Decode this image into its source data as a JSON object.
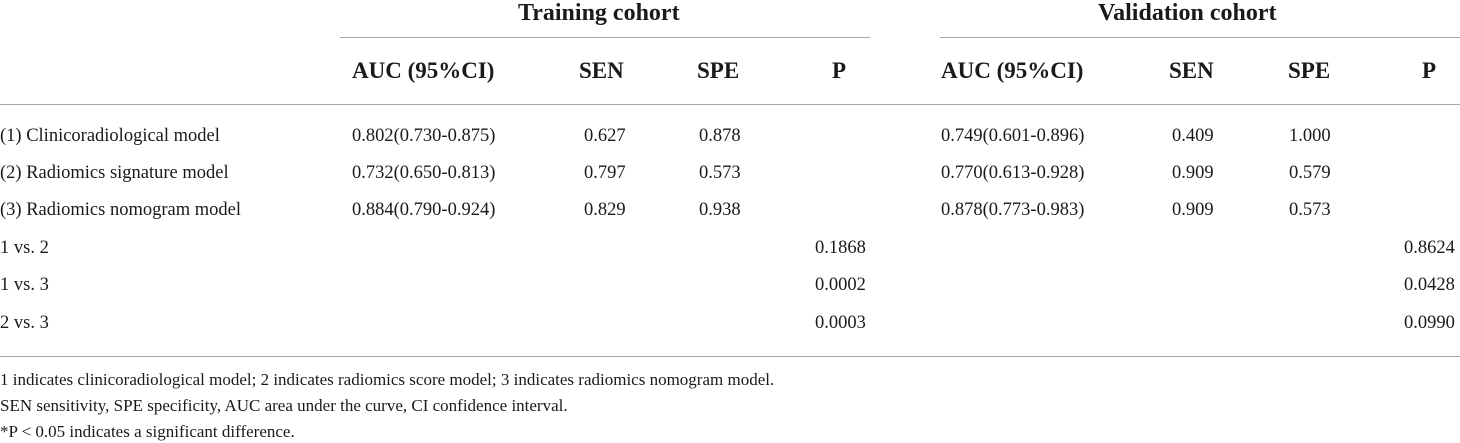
{
  "table": {
    "groups": [
      "Training cohort",
      "Validation cohort"
    ],
    "columns": [
      "AUC (95%CI)",
      "SEN",
      "SPE",
      "P"
    ],
    "rows": [
      {
        "label": "(1) Clinicoradiological model",
        "train": [
          "0.802(0.730-0.875)",
          "0.627",
          "0.878",
          ""
        ],
        "valid": [
          "0.749(0.601-0.896)",
          "0.409",
          "1.000",
          ""
        ]
      },
      {
        "label": "(2) Radiomics signature model",
        "train": [
          "0.732(0.650-0.813)",
          "0.797",
          "0.573",
          ""
        ],
        "valid": [
          "0.770(0.613-0.928)",
          "0.909",
          "0.579",
          ""
        ]
      },
      {
        "label": "(3) Radiomics nomogram model",
        "train": [
          "0.884(0.790-0.924)",
          "0.829",
          "0.938",
          ""
        ],
        "valid": [
          "0.878(0.773-0.983)",
          "0.909",
          "0.573",
          ""
        ]
      },
      {
        "label": "1 vs. 2",
        "train": [
          "",
          "",
          "",
          "0.1868"
        ],
        "valid": [
          "",
          "",
          "",
          "0.8624"
        ]
      },
      {
        "label": "1 vs. 3",
        "train": [
          "",
          "",
          "",
          "0.0002"
        ],
        "valid": [
          "",
          "",
          "",
          "0.0428"
        ]
      },
      {
        "label": "2 vs. 3",
        "train": [
          "",
          "",
          "",
          "0.0003"
        ],
        "valid": [
          "",
          "",
          "",
          "0.0990"
        ]
      }
    ]
  },
  "footnotes": [
    "1 indicates clinicoradiological model; 2 indicates radiomics score model; 3 indicates radiomics nomogram model.",
    "SEN sensitivity, SPE specificity, AUC area under the curve, CI confidence interval.",
    "*P < 0.05 indicates a significant difference."
  ]
}
